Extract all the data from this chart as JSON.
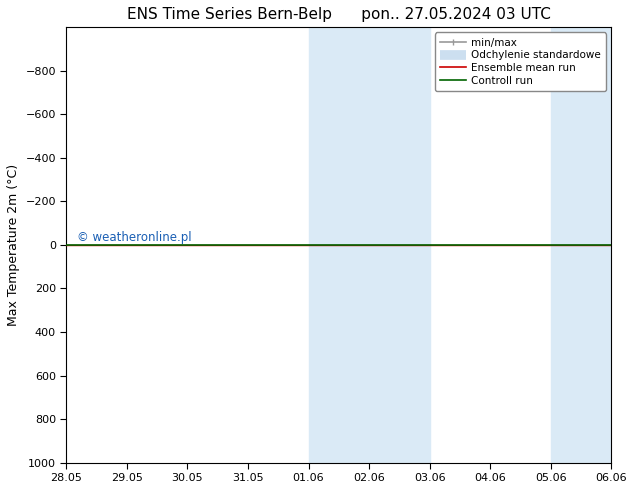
{
  "title_left": "ENS Time Series Bern-Belp",
  "title_right": "pon.. 27.05.2024 03 UTC",
  "ylabel": "Max Temperature 2m (°C)",
  "background_color": "#ffffff",
  "plot_bg_color": "#ffffff",
  "ylim_bottom": 1000,
  "ylim_top": -1000,
  "yticks": [
    -800,
    -600,
    -400,
    -200,
    0,
    200,
    400,
    600,
    800,
    1000
  ],
  "xtick_labels": [
    "28.05",
    "29.05",
    "30.05",
    "31.05",
    "01.06",
    "02.06",
    "03.06",
    "04.06",
    "05.06",
    "06.06"
  ],
  "xtick_positions": [
    0,
    1,
    2,
    3,
    4,
    5,
    6,
    7,
    8,
    9
  ],
  "xlim": [
    0,
    9
  ],
  "shaded_bands": [
    {
      "x_start": 4,
      "x_end": 5,
      "color": "#daeaf6"
    },
    {
      "x_start": 5,
      "x_end": 6,
      "color": "#daeaf6"
    },
    {
      "x_start": 8,
      "x_end": 9,
      "color": "#daeaf6"
    }
  ],
  "shaded_bands2": [
    {
      "x_start": 4,
      "x_end": 6,
      "color": "#daeaf6"
    },
    {
      "x_start": 8,
      "x_end": 9,
      "color": "#daeaf6"
    }
  ],
  "horizontal_line_y": 0,
  "control_run_color": "#006400",
  "control_run_lw": 1.2,
  "ensemble_mean_color": "#cc0000",
  "ensemble_mean_lw": 1.0,
  "watermark_text": "© weatheronline.pl",
  "watermark_color": "#1a5fb4",
  "legend_entries": [
    {
      "label": "min/max",
      "color": "#999999",
      "lw": 1.2
    },
    {
      "label": "Odchylenie standardowe",
      "color": "#ccdff0",
      "lw": 8
    },
    {
      "label": "Ensemble mean run",
      "color": "#cc0000",
      "lw": 1.2
    },
    {
      "label": "Controll run",
      "color": "#006400",
      "lw": 1.2
    }
  ],
  "spine_color": "#000000",
  "grid_color": "#dddddd",
  "title_fontsize": 11,
  "axis_label_fontsize": 9,
  "tick_fontsize": 8,
  "legend_fontsize": 7.5
}
